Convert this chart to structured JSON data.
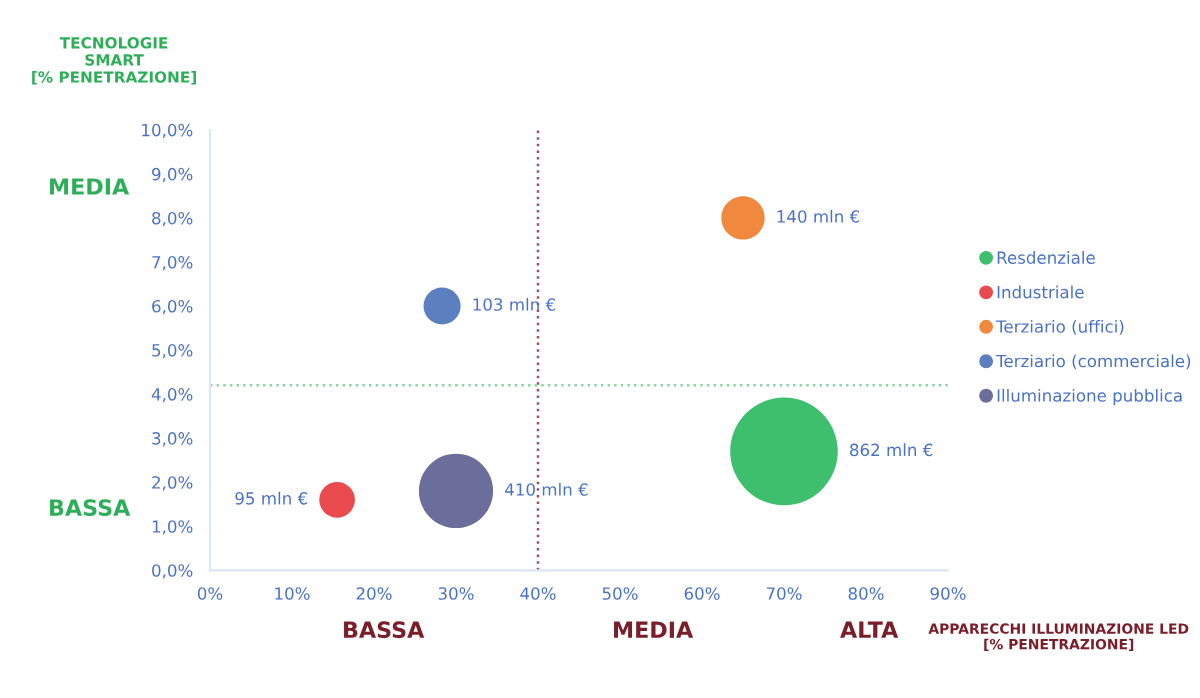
{
  "chart_data": {
    "type": "bubble",
    "xlabel": "APPARECCHI ILLUMINAZIONE LED\n[% PENETRAZIONE]",
    "ylabel": "TECNOLOGIE\nSMART\n[% PENETRAZIONE]",
    "series": [
      {
        "name": "Resdenziale",
        "color": "#3dbf6e",
        "x": [
          70
        ],
        "values": [
          2.7
        ],
        "sizes": [
          1
        ]
      },
      {
        "name": "Industriale",
        "color": "#e84a50",
        "x": [
          15.5
        ],
        "values": [
          1.6
        ],
        "sizes": [
          0.11
        ]
      },
      {
        "name": "Terziario (uffici)",
        "color": "#f0883e",
        "x": [
          65
        ],
        "values": [
          8.0
        ],
        "sizes": [
          0.162
        ]
      },
      {
        "name": "Terziario (commerciale)",
        "color": "#5b7fbf",
        "x": [
          28.3
        ],
        "values": [
          6.0
        ],
        "sizes": [
          0.119
        ]
      },
      {
        "name": "Illuminazione pubblica",
        "color": "#6b6e9a",
        "x": [
          30
        ],
        "values": [
          1.8
        ],
        "sizes": [
          0.476
        ]
      }
    ],
    "annotations": [
      "862 mln €",
      "95 mln €",
      "140 mln €",
      "103 mln €",
      "410 mln €",
      "MEDIA",
      "BASSA",
      "BASSA",
      "MEDIA",
      "ALTA"
    ],
    "ref_lines": [
      {
        "axis": "x",
        "value": 40,
        "color": "#a05060",
        "line_style": "dotted"
      },
      {
        "axis": "y",
        "value": 4.2,
        "color": "#8fd4a8",
        "line_style": "dotted"
      }
    ],
    "xlim": [
      0,
      90
    ],
    "ylim": [
      0,
      10
    ],
    "xticks": [
      {
        "value": 0,
        "label": "0%"
      },
      {
        "value": 10,
        "label": "10%"
      },
      {
        "value": 20,
        "label": "20%"
      },
      {
        "value": 30,
        "label": "30%"
      },
      {
        "value": 40,
        "label": "40%"
      },
      {
        "value": 50,
        "label": "50%"
      },
      {
        "value": 60,
        "label": "60%"
      },
      {
        "value": 70,
        "label": "70%"
      },
      {
        "value": 80,
        "label": "80%"
      },
      {
        "value": 90,
        "label": "90%"
      }
    ],
    "yticks": [
      {
        "value": 0,
        "label": "0,0%"
      },
      {
        "value": 1,
        "label": "1,0%"
      },
      {
        "value": 2,
        "label": "2,0%"
      },
      {
        "value": 3,
        "label": "3,0%"
      },
      {
        "value": 4,
        "label": "4,0%"
      },
      {
        "value": 5,
        "label": "5,0%"
      },
      {
        "value": 6,
        "label": "6,0%"
      },
      {
        "value": 7,
        "label": "7,0%"
      },
      {
        "value": 8,
        "label": "8,0%"
      },
      {
        "value": 9,
        "label": "9,0%"
      },
      {
        "value": 10,
        "label": "10,0%"
      }
    ],
    "grid": false,
    "legend": "right",
    "marker": "circle"
  }
}
